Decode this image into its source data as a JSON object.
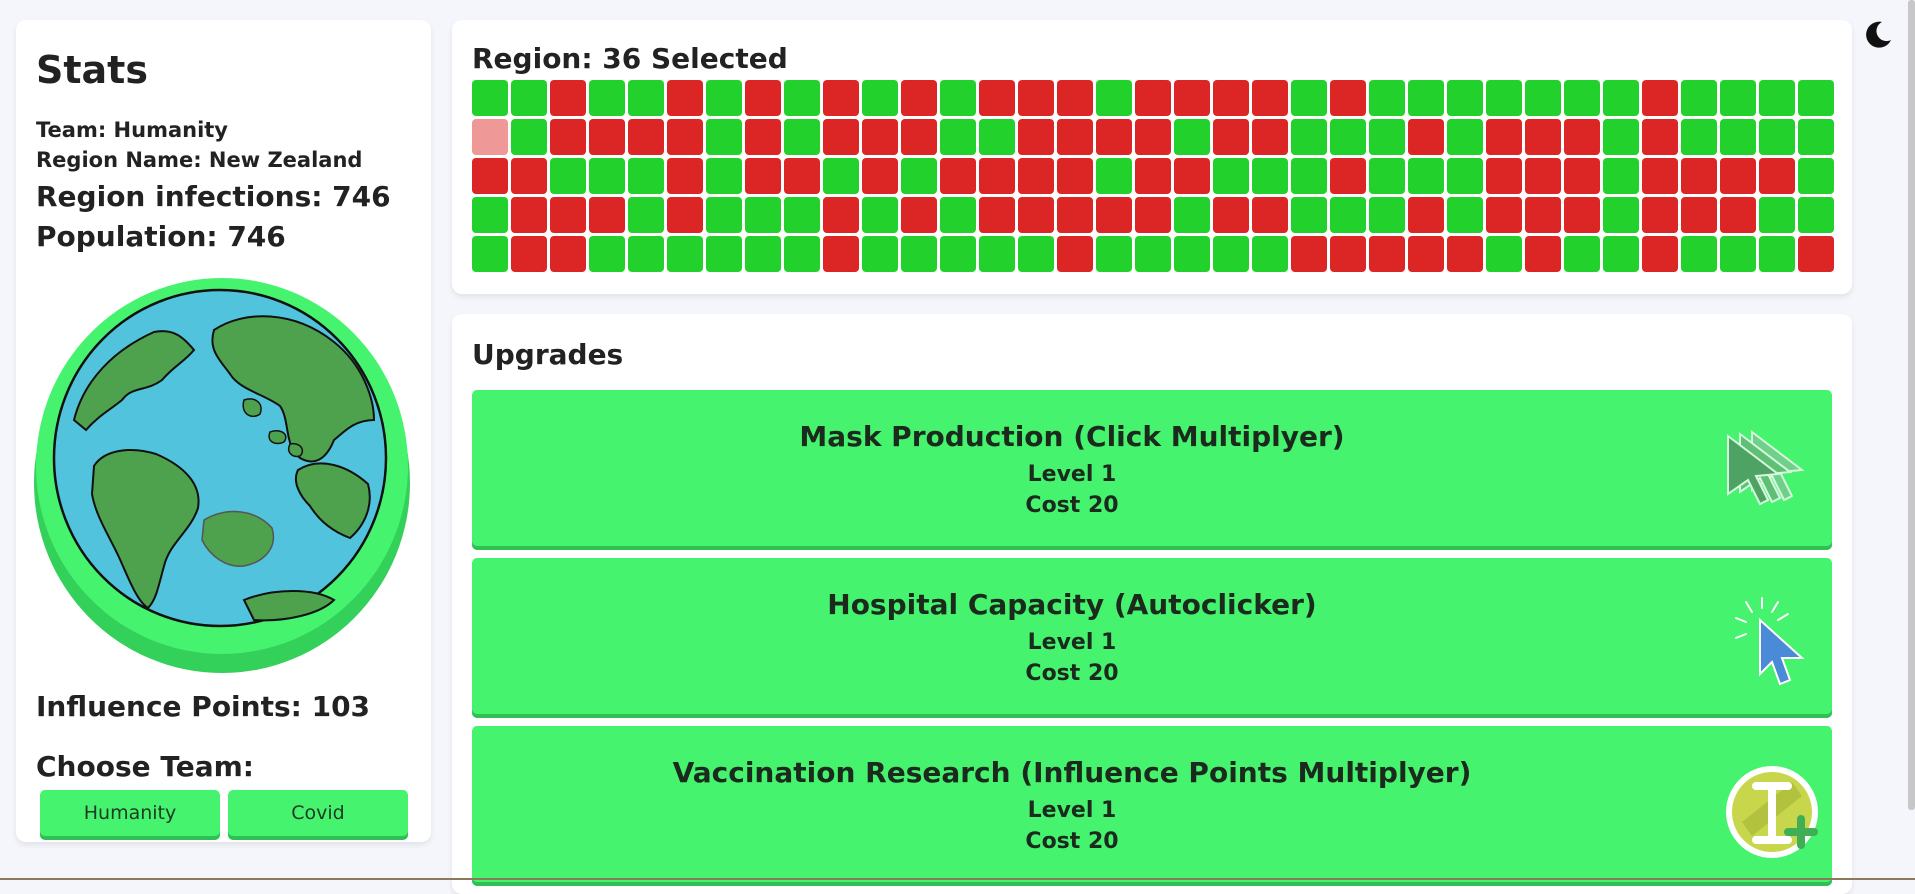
{
  "stats": {
    "title": "Stats",
    "team_line": "Team: Humanity",
    "region_name_line": "Region Name: New Zealand",
    "region_infections_line": "Region infections: 746",
    "population_line": "Population: 746",
    "influence_points_line": "Influence Points: 103",
    "choose_team_label": "Choose Team:",
    "team_buttons": [
      "Humanity",
      "Covid"
    ]
  },
  "region": {
    "title": "Region: 36 Selected",
    "grid_legend": {
      "g": "green cell",
      "r": "red cell",
      "s": "selected cell"
    },
    "grid_rows": [
      "ggrggrgrgrgrgrrrgrrrrgrgggggggrggg",
      "sgrrrrgrgrrrggrrrrgrrgggrgrrrgrgg",
      "rrgggrgrrgrgrrrrgrrgggrgggrrrgrrrr",
      "grrrgrgggrgrgrrrrrgrrgggrgrrrgrrr",
      "grrggggggrgggggrgggggrrrrrgrggrgggr"
    ],
    "colors": {
      "green": "#23d12d",
      "red": "#dc2626",
      "selected": "#ef9898"
    }
  },
  "upgrades": {
    "title": "Upgrades",
    "items": [
      {
        "name": "Mask Production (Click Multiplyer)",
        "level": "Level 1",
        "cost": "Cost 20",
        "icon": "multi-cursor-icon"
      },
      {
        "name": "Hospital Capacity (Autoclicker)",
        "level": "Level 1",
        "cost": "Cost 20",
        "icon": "auto-cursor-icon"
      },
      {
        "name": "Vaccination Research (Influence Points Multiplyer)",
        "level": "Level 1",
        "cost": "Cost 20",
        "icon": "influence-plus-icon"
      }
    ]
  },
  "theme_toggle_icon": "moon-icon",
  "accent_color": "#45f36e"
}
